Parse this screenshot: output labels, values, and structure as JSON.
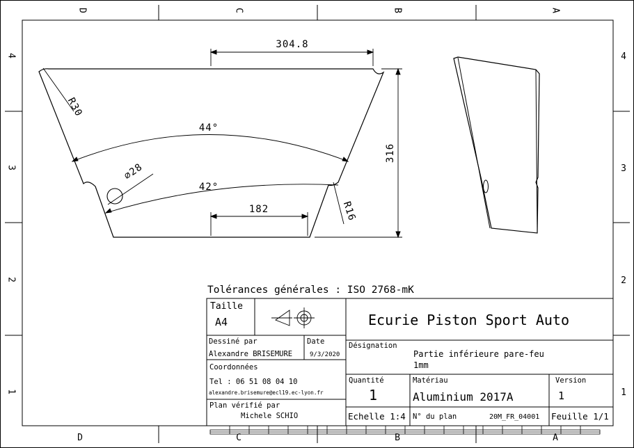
{
  "border": {
    "top_letters": [
      "D",
      "C",
      "B",
      "A"
    ],
    "bottom_letters": [
      "D",
      "C",
      "B",
      "A"
    ],
    "left_numbers": [
      "4",
      "3",
      "2",
      "1"
    ],
    "right_numbers": [
      "4",
      "3",
      "2",
      "1"
    ]
  },
  "dimensions": {
    "top_width": "304.8",
    "height": "316",
    "bottom_width": "182",
    "outer_angle": "44°",
    "inner_angle": "42°",
    "hole": "⌀28",
    "radius_top": "R30",
    "radius_notch": "R16"
  },
  "tolerances": "Tolérances générales : ISO 2768-mK",
  "title_block": {
    "size_label": "Taille",
    "size_value": "A4",
    "company": "Ecurie Piston Sport Auto",
    "drawn_by_label": "Dessiné par",
    "drawn_by": "Alexandre BRISEMURE",
    "date_label": "Date",
    "date": "9/3/2020",
    "contact_label": "Coordonnées",
    "phone": "Tel : 06 51 08 04 10",
    "email": "alexandre.brisemure@ecl19.ec-lyon.fr",
    "checked_label": "Plan vérifié par",
    "checked_by": "Michele SCHIO",
    "designation_label": "Désignation",
    "designation_line1": "Partie inférieure pare-feu",
    "designation_line2": "1mm",
    "quantity_label": "Quantité",
    "quantity": "1",
    "material_label": "Matériau",
    "material": "Aluminium 2017A",
    "version_label": "Version",
    "version": "1",
    "scale": "Echelle 1:4",
    "plan_no_label": "N° du plan",
    "plan_no": "20M_FR_04001",
    "sheet": "Feuille 1/1"
  }
}
